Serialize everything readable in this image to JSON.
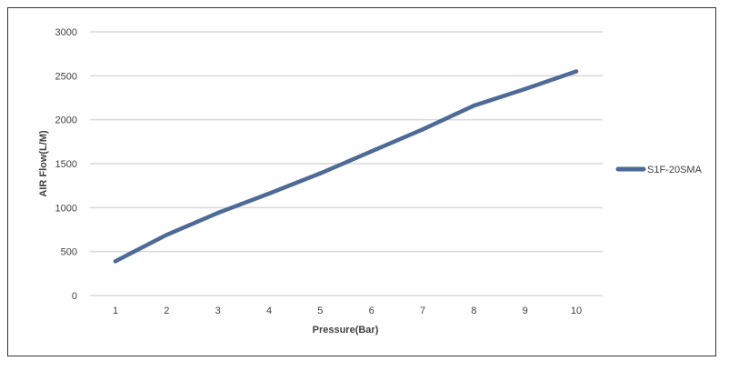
{
  "chart_data": {
    "type": "line",
    "title": "",
    "xlabel": "Pressure(Bar)",
    "ylabel": "AIR Flow(L/M)",
    "categories": [
      "1",
      "2",
      "3",
      "4",
      "5",
      "6",
      "7",
      "8",
      "9",
      "10"
    ],
    "x": [
      1,
      2,
      3,
      4,
      5,
      6,
      7,
      8,
      9,
      10
    ],
    "series": [
      {
        "name": "S1F-20SMA",
        "values": [
          390,
          690,
          940,
          1160,
          1390,
          1640,
          1890,
          2160,
          2350,
          2550
        ],
        "color": "#4e6a96"
      }
    ],
    "ylim": [
      0,
      3000
    ],
    "yticks": [
      0,
      500,
      1000,
      1500,
      2000,
      2500,
      3000
    ],
    "grid": true,
    "legend": "right",
    "colors": {
      "grid": "#d9d9d9",
      "text": "#404040",
      "border": "#333333"
    }
  }
}
